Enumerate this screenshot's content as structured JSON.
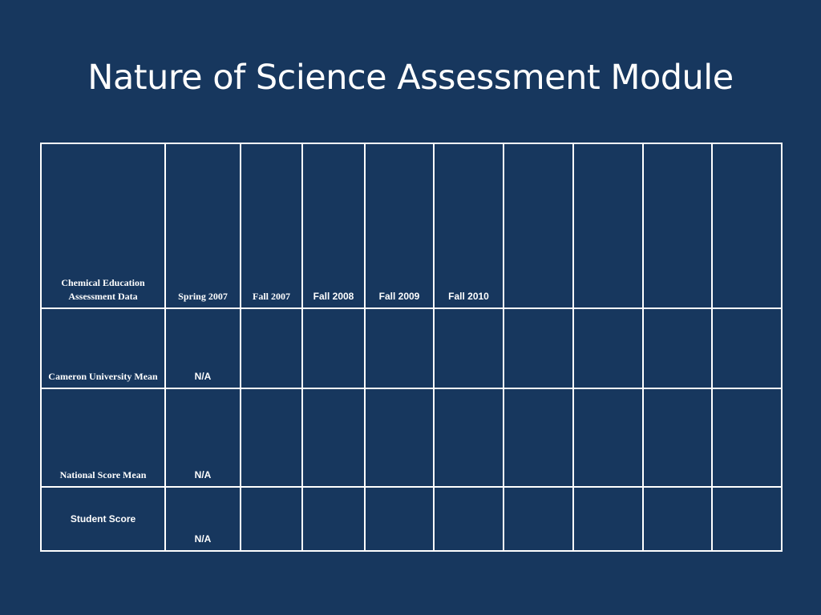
{
  "slide": {
    "title": "Nature of Science Assessment Module"
  },
  "table": {
    "header": {
      "label": "Chemical Education Assessment Data",
      "columns": [
        "Spring 2007",
        "Fall 2007",
        "Fall 2008",
        "Fall 2009",
        "Fall 2010",
        "",
        "",
        "",
        ""
      ]
    },
    "rows": [
      {
        "label": "Cameron University Mean",
        "cells": [
          "N/A",
          "",
          "",
          "",
          "",
          "",
          "",
          "",
          ""
        ]
      },
      {
        "label": "National Score Mean",
        "cells": [
          "N/A",
          "",
          "",
          "",
          "",
          "",
          "",
          "",
          ""
        ]
      },
      {
        "label": "Student Score",
        "cells": [
          "N/A",
          "",
          "",
          "",
          "",
          "",
          "",
          "",
          ""
        ]
      }
    ]
  }
}
